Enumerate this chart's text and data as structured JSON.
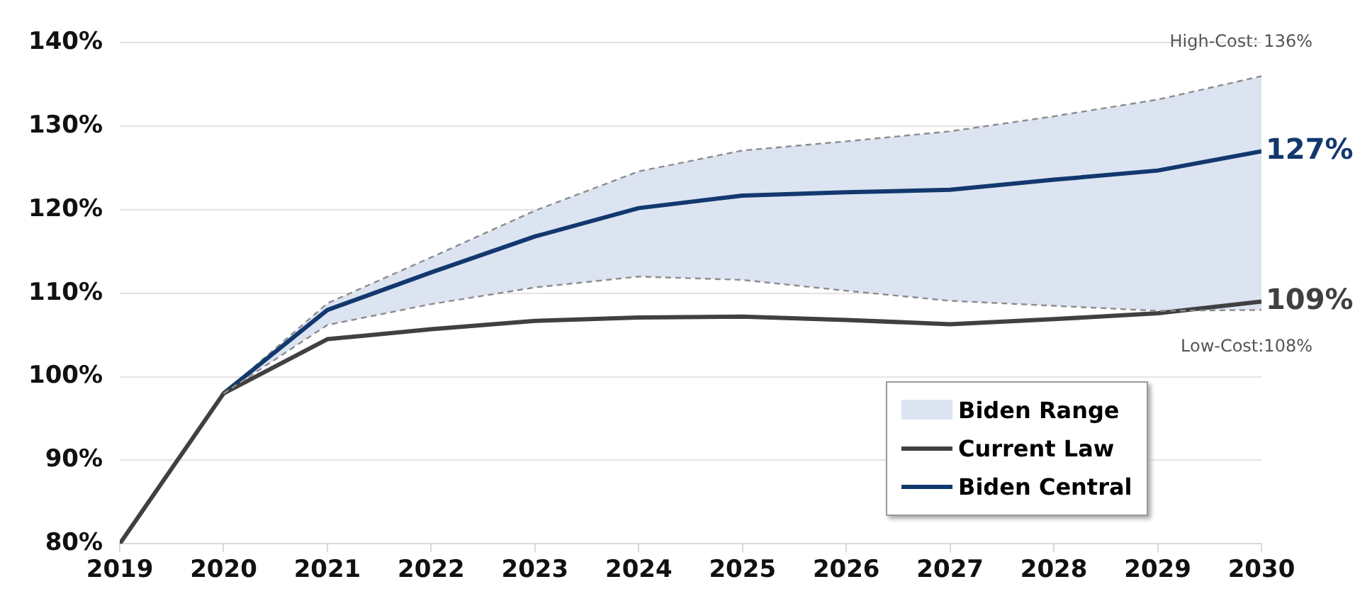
{
  "chart_data": {
    "type": "line",
    "x": [
      2019,
      2020,
      2021,
      2022,
      2023,
      2024,
      2025,
      2026,
      2027,
      2028,
      2029,
      2030
    ],
    "xlim": [
      2019,
      2030
    ],
    "xticks": [
      2019,
      2020,
      2021,
      2022,
      2023,
      2024,
      2025,
      2026,
      2027,
      2028,
      2029,
      2030
    ],
    "ylim": [
      80,
      140
    ],
    "yticks": [
      {
        "value": 80,
        "label": "80%"
      },
      {
        "value": 90,
        "label": "90%"
      },
      {
        "value": 100,
        "label": "100%"
      },
      {
        "value": 110,
        "label": "110%"
      },
      {
        "value": 120,
        "label": "120%"
      },
      {
        "value": 130,
        "label": "130%"
      },
      {
        "value": 140,
        "label": "140%"
      }
    ],
    "grid": "y",
    "legend": "bottom right",
    "marker": "none",
    "series": [
      {
        "name": "Biden Range",
        "type": "area",
        "color": "#dce4f2",
        "x": [
          2020,
          2021,
          2022,
          2023,
          2024,
          2025,
          2026,
          2027,
          2028,
          2029,
          2030
        ],
        "values": [
          98,
          108.8,
          114.3,
          119.9,
          124.6,
          127.1,
          128.2,
          129.4,
          131.2,
          133.2,
          136
        ],
        "line_style": "dashed"
      },
      {
        "type": "line",
        "color": "#8c8c8c",
        "x": [
          2020,
          2021,
          2022,
          2023,
          2024,
          2025,
          2026,
          2027,
          2028,
          2029,
          2030
        ],
        "values": [
          98,
          106.2,
          108.7,
          110.7,
          112,
          111.6,
          110.3,
          109.1,
          108.5,
          107.9,
          108
        ],
        "line_style": "dashed"
      },
      {
        "name": "Current Law",
        "type": "line",
        "color": "#404040",
        "values": [
          80,
          98,
          104.5,
          105.7,
          106.7,
          107.1,
          107.2,
          106.8,
          106.3,
          106.9,
          107.6,
          109
        ],
        "value_labels": [
          null,
          null,
          null,
          null,
          null,
          null,
          null,
          null,
          null,
          null,
          null,
          "109%"
        ]
      },
      {
        "name": "Biden Central",
        "type": "line",
        "color": "#12386e",
        "x": [
          2020,
          2021,
          2022,
          2023,
          2024,
          2025,
          2026,
          2027,
          2028,
          2029,
          2030
        ],
        "values": [
          98,
          108,
          112.5,
          116.8,
          120.2,
          121.7,
          122.1,
          122.4,
          123.6,
          124.7,
          127
        ],
        "value_labels": [
          null,
          null,
          null,
          null,
          null,
          null,
          null,
          null,
          null,
          null,
          "127%"
        ]
      }
    ],
    "annotations": [
      {
        "text": "High-Cost: 136%",
        "x": 2030,
        "y": 136
      },
      {
        "text": "Low-Cost:108%",
        "x": 2030,
        "y": 108
      }
    ]
  }
}
